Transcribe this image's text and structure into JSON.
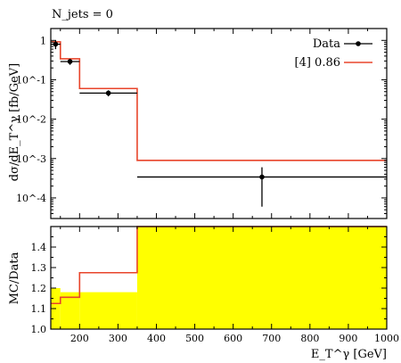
{
  "chart_data": [
    {
      "type": "line",
      "panel": "main",
      "annotation": "N_jets = 0",
      "ylabel": "dσ/dE_T^γ [fb/GeV]",
      "yscale": "log",
      "ylim": [
        3e-05,
        2
      ],
      "xlim": [
        125,
        1000
      ],
      "ytick_labels": [
        "1",
        "10^-1",
        "10^-2",
        "10^-3",
        "10^-4"
      ],
      "ytick_values": [
        1,
        0.1,
        0.01,
        0.001,
        0.0001
      ],
      "legend_position": "top-right",
      "bin_edges": [
        125,
        150,
        200,
        350,
        1000
      ],
      "series": [
        {
          "name": "Data",
          "style": "points",
          "color": "#000000",
          "x": [
            137.5,
            175,
            275,
            675
          ],
          "y": [
            0.8,
            0.29,
            0.046,
            0.00034
          ],
          "y_err_low": [
            0.2,
            0.05,
            0.008,
            0.00028
          ],
          "y_err_high": [
            0.2,
            0.05,
            0.008,
            0.00026
          ],
          "x_err": [
            12.5,
            25,
            75,
            325
          ]
        },
        {
          "name": "[4] 0.86",
          "style": "step",
          "color": "#e8452b",
          "y": [
            0.92,
            0.34,
            0.06,
            0.0009
          ]
        }
      ]
    },
    {
      "type": "area",
      "panel": "ratio",
      "ylabel": "MC/Data",
      "xlabel": "E_T^γ [GeV]",
      "xlim": [
        125,
        1000
      ],
      "ylim": [
        1.0,
        1.5
      ],
      "xtick_labels": [
        "200",
        "300",
        "400",
        "500",
        "600",
        "700",
        "800",
        "900",
        "1000"
      ],
      "ytick_labels": [
        "1.0",
        "1.1",
        "1.2",
        "1.3",
        "1.4"
      ],
      "bin_edges": [
        125,
        150,
        200,
        350,
        1000
      ],
      "band_color": "#ffff00",
      "band": {
        "low": [
          1.0,
          1.0,
          1.0,
          1.0
        ],
        "high": [
          1.2,
          1.18,
          1.18,
          1.5
        ]
      },
      "ratio_line": {
        "color": "#e8452b",
        "values": [
          1.125,
          1.155,
          1.275,
          1.5
        ]
      }
    }
  ]
}
